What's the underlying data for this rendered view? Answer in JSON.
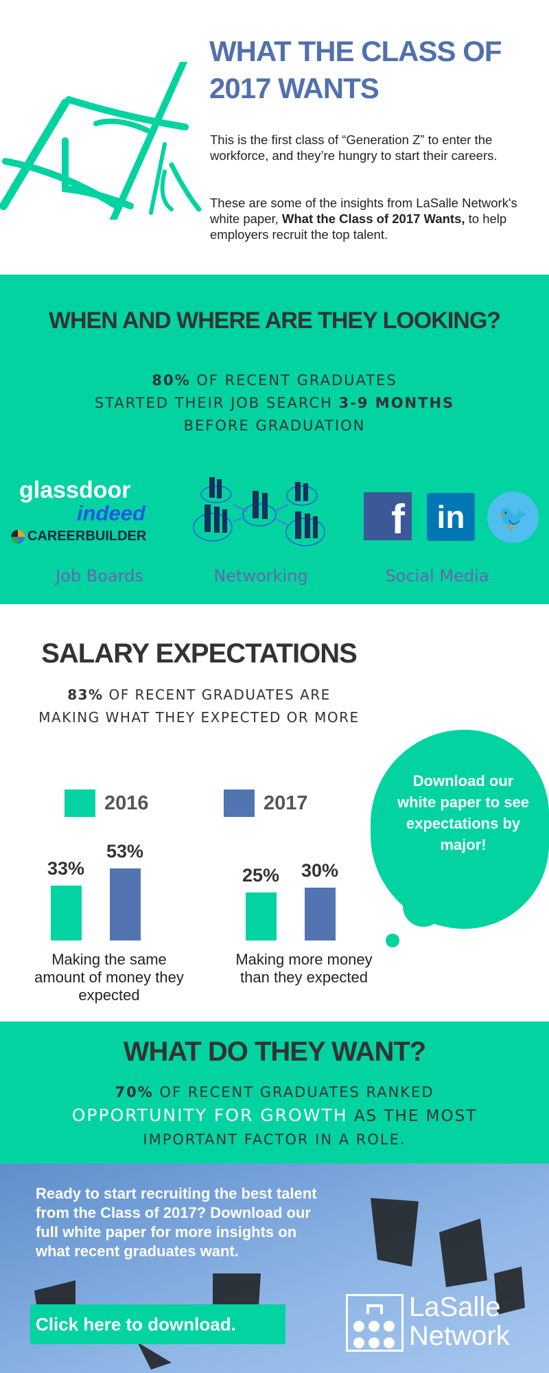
{
  "header": {
    "title_line1": "WHAT THE CLASS OF",
    "title_line2": "2017 WANTS",
    "intro": "This is the first class of “Generation Z” to enter the workforce, and they’re hungry to start their careers.",
    "insight_pre": "These are some of the insights from LaSalle Network's white paper, ",
    "insight_bold": "What the Class of 2017 Wants,",
    "insight_post": " to help employers recruit the top talent."
  },
  "looking": {
    "heading": "WHEN AND WHERE ARE THEY LOOKING?",
    "stat_pct": "80%",
    "stat_l1": " OF RECENT GRADUATES",
    "stat_l2a": "STARTED THEIR JOB SEARCH ",
    "stat_l2b": "3-9 MONTHS",
    "stat_l3": "BEFORE GRADUATION",
    "logos": [
      "glassdoor",
      "indeed",
      "CAREERBUILDER"
    ],
    "channels": [
      "Job Boards",
      "Networking",
      "Social Media"
    ]
  },
  "salary": {
    "heading": "SALARY EXPECTATIONS",
    "stat_pct": "83%",
    "stat_l1": " OF RECENT GRADUATES ARE",
    "stat_l2": "MAKING WHAT THEY EXPECTED OR MORE",
    "bubble": "Download our white paper to see expectations by major!"
  },
  "chart_data": {
    "type": "bar",
    "categories": [
      "Making the same amount of money they expected",
      "Making more money than they expected"
    ],
    "series": [
      {
        "name": "2016",
        "color": "#02d3a1",
        "values": [
          33,
          25
        ]
      },
      {
        "name": "2017",
        "color": "#5274b0",
        "values": [
          53,
          30
        ]
      }
    ],
    "unit": "%"
  },
  "want": {
    "heading": "WHAT DO THEY WANT?",
    "stat_pct": "70%",
    "stat_l1": " OF RECENT GRADUATES RANKED",
    "stat_hl": "OPPORTUNITY FOR GROWTH",
    "stat_l2": " AS THE MOST",
    "stat_l3": "IMPORTANT FACTOR IN A ROLE."
  },
  "cta": {
    "text": "Ready to start recruiting the best talent from the Class of 2017? Download our full white paper for more insights on what recent graduates want.",
    "button": "Click here to download.",
    "logo_l1": "LaSalle",
    "logo_l2": "Network"
  }
}
